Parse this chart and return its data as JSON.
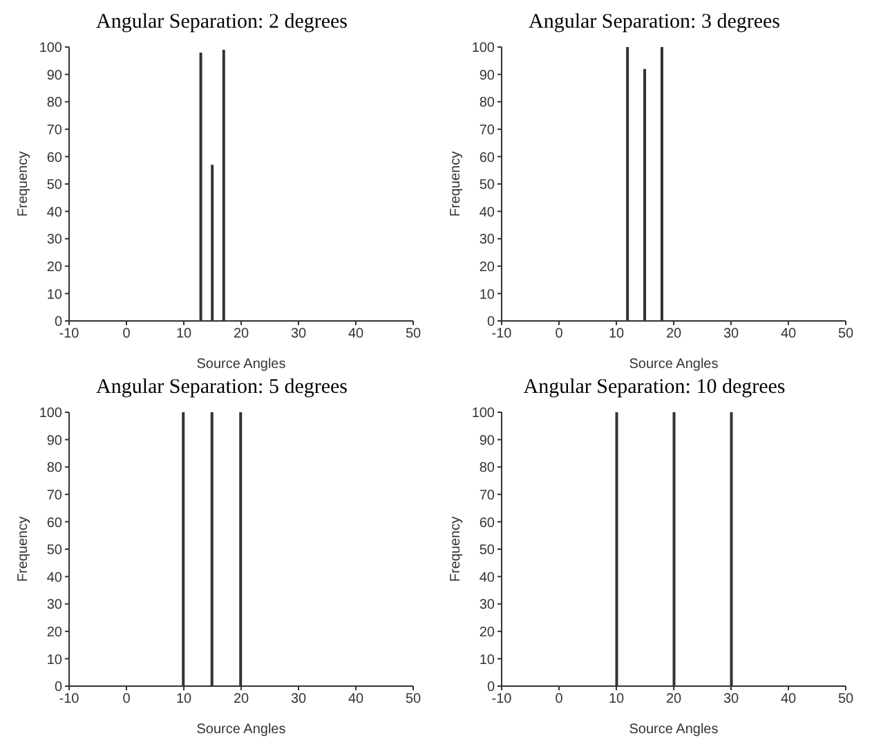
{
  "chart_data": [
    {
      "type": "bar",
      "title": "Angular Separation: 2 degrees",
      "xlabel": "Source Angles",
      "ylabel": "Frequency",
      "x": [
        13,
        15,
        17
      ],
      "values": [
        98,
        57,
        99
      ],
      "color": "#333333",
      "xlim": [
        -10,
        50
      ],
      "xticks": [
        -10,
        0,
        10,
        20,
        30,
        40,
        50
      ],
      "ylim": [
        0,
        100
      ],
      "yticks": [
        0,
        10,
        20,
        30,
        40,
        50,
        60,
        70,
        80,
        90,
        100
      ]
    },
    {
      "type": "bar",
      "title": "Angular Separation: 3 degrees",
      "xlabel": "Source Angles",
      "ylabel": "Frequency",
      "x": [
        12,
        15,
        18
      ],
      "values": [
        100,
        92,
        100
      ],
      "color": "#333333",
      "xlim": [
        -10,
        50
      ],
      "xticks": [
        -10,
        0,
        10,
        20,
        30,
        40,
        50
      ],
      "ylim": [
        0,
        100
      ],
      "yticks": [
        0,
        10,
        20,
        30,
        40,
        50,
        60,
        70,
        80,
        90,
        100
      ]
    },
    {
      "type": "bar",
      "title": "Angular Separation: 5 degrees",
      "xlabel": "Source Angles",
      "ylabel": "Frequency",
      "x": [
        10,
        15,
        20
      ],
      "values": [
        100,
        100,
        100
      ],
      "color": "#333333",
      "xlim": [
        -10,
        50
      ],
      "xticks": [
        -10,
        0,
        10,
        20,
        30,
        40,
        50
      ],
      "ylim": [
        0,
        100
      ],
      "yticks": [
        0,
        10,
        20,
        30,
        40,
        50,
        60,
        70,
        80,
        90,
        100
      ]
    },
    {
      "type": "bar",
      "title": "Angular Separation: 10 degrees",
      "xlabel": "Source Angles",
      "ylabel": "Frequency",
      "x": [
        10,
        20,
        30
      ],
      "values": [
        100,
        100,
        100
      ],
      "color": "#333333",
      "xlim": [
        -10,
        50
      ],
      "xticks": [
        -10,
        0,
        10,
        20,
        30,
        40,
        50
      ],
      "ylim": [
        0,
        100
      ],
      "yticks": [
        0,
        10,
        20,
        30,
        40,
        50,
        60,
        70,
        80,
        90,
        100
      ]
    }
  ]
}
